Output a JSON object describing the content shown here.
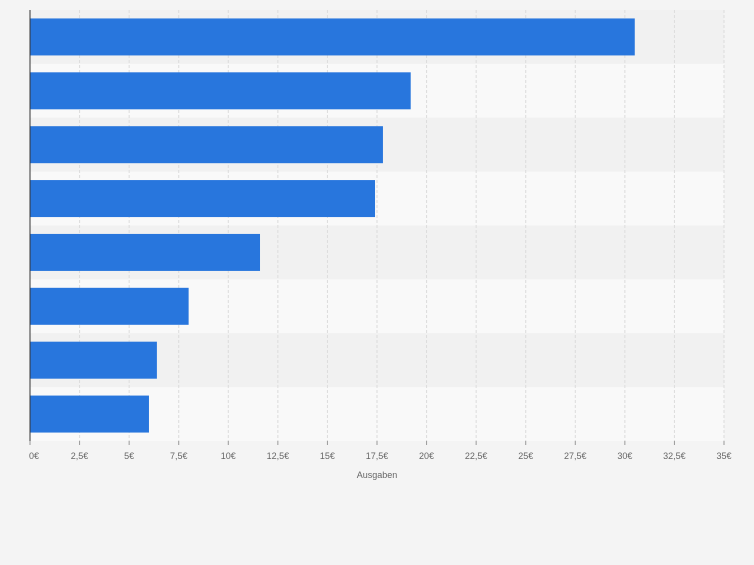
{
  "chart_data": {
    "type": "bar",
    "orientation": "horizontal",
    "categories": [
      "",
      "",
      "",
      "",
      "",
      "",
      "",
      ""
    ],
    "values": [
      30.5,
      19.2,
      17.8,
      17.4,
      11.6,
      8.0,
      6.4,
      6.0
    ],
    "xlabel": "Ausgaben",
    "ylabel": "",
    "xlim": [
      0,
      35
    ],
    "ticks": [
      0,
      2.5,
      5,
      7.5,
      10,
      12.5,
      15,
      17.5,
      20,
      22.5,
      25,
      27.5,
      30,
      32.5,
      35
    ],
    "tick_labels": [
      "0€",
      "2,5€",
      "5€",
      "7,5€",
      "10€",
      "12,5€",
      "15€",
      "17,5€",
      "20€",
      "22,5€",
      "25€",
      "27,5€",
      "30€",
      "32,5€",
      "35€"
    ],
    "grid": true,
    "bar_color": "#2876dd",
    "stripe_colors": [
      "#f1f1f1",
      "#f9f9f9"
    ],
    "background": "#f4f4f4"
  }
}
